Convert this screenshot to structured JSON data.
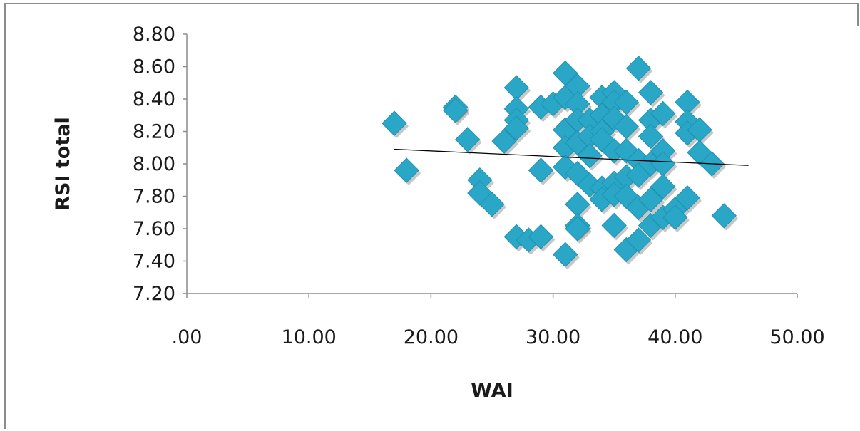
{
  "chart_data": {
    "type": "scatter",
    "xlabel": "WAI",
    "ylabel": "RSI total",
    "xlim": [
      0,
      50
    ],
    "ylim": [
      7.2,
      8.8
    ],
    "x_ticks": [
      ".00",
      "10.00",
      "20.00",
      "30.00",
      "40.00",
      "50.00"
    ],
    "y_ticks": [
      "7.20",
      "7.40",
      "7.60",
      "7.80",
      "8.00",
      "8.20",
      "8.40",
      "8.60",
      "8.80"
    ],
    "marker_color": "#2aa7c7",
    "trendline": {
      "x": [
        17,
        46
      ],
      "y": [
        8.09,
        7.99
      ]
    },
    "points": [
      {
        "x": 17,
        "y": 8.25
      },
      {
        "x": 18,
        "y": 7.96
      },
      {
        "x": 22,
        "y": 8.35
      },
      {
        "x": 22,
        "y": 8.33
      },
      {
        "x": 23,
        "y": 8.15
      },
      {
        "x": 24,
        "y": 7.9
      },
      {
        "x": 24,
        "y": 7.82
      },
      {
        "x": 25,
        "y": 7.75
      },
      {
        "x": 26,
        "y": 8.14
      },
      {
        "x": 27,
        "y": 8.47
      },
      {
        "x": 27,
        "y": 8.34
      },
      {
        "x": 27,
        "y": 8.27
      },
      {
        "x": 27,
        "y": 8.22
      },
      {
        "x": 27,
        "y": 7.55
      },
      {
        "x": 28,
        "y": 7.53
      },
      {
        "x": 29,
        "y": 8.35
      },
      {
        "x": 29,
        "y": 7.96
      },
      {
        "x": 29,
        "y": 7.55
      },
      {
        "x": 30,
        "y": 8.37
      },
      {
        "x": 31,
        "y": 8.56
      },
      {
        "x": 31,
        "y": 8.41
      },
      {
        "x": 31,
        "y": 8.21
      },
      {
        "x": 31,
        "y": 8.1
      },
      {
        "x": 31,
        "y": 7.98
      },
      {
        "x": 31,
        "y": 7.44
      },
      {
        "x": 32,
        "y": 8.48
      },
      {
        "x": 32,
        "y": 8.37
      },
      {
        "x": 32,
        "y": 8.27
      },
      {
        "x": 32,
        "y": 8.13
      },
      {
        "x": 32,
        "y": 7.94
      },
      {
        "x": 32,
        "y": 7.75
      },
      {
        "x": 32,
        "y": 7.62
      },
      {
        "x": 32,
        "y": 7.6
      },
      {
        "x": 33,
        "y": 8.27
      },
      {
        "x": 33,
        "y": 8.17
      },
      {
        "x": 33,
        "y": 8.05
      },
      {
        "x": 33,
        "y": 7.87
      },
      {
        "x": 34,
        "y": 8.41
      },
      {
        "x": 34,
        "y": 8.3
      },
      {
        "x": 34,
        "y": 8.2
      },
      {
        "x": 34,
        "y": 8.15
      },
      {
        "x": 34,
        "y": 7.85
      },
      {
        "x": 34,
        "y": 7.78
      },
      {
        "x": 35,
        "y": 8.44
      },
      {
        "x": 35,
        "y": 8.38
      },
      {
        "x": 35,
        "y": 8.28
      },
      {
        "x": 35,
        "y": 8.08
      },
      {
        "x": 35,
        "y": 7.88
      },
      {
        "x": 35,
        "y": 7.81
      },
      {
        "x": 35,
        "y": 7.62
      },
      {
        "x": 36,
        "y": 8.38
      },
      {
        "x": 36,
        "y": 8.23
      },
      {
        "x": 36,
        "y": 8.08
      },
      {
        "x": 36,
        "y": 7.92
      },
      {
        "x": 36,
        "y": 7.8
      },
      {
        "x": 36,
        "y": 7.47
      },
      {
        "x": 37,
        "y": 8.59
      },
      {
        "x": 37,
        "y": 8.02
      },
      {
        "x": 37,
        "y": 7.93
      },
      {
        "x": 37,
        "y": 7.73
      },
      {
        "x": 37,
        "y": 7.53
      },
      {
        "x": 38,
        "y": 8.44
      },
      {
        "x": 38,
        "y": 8.27
      },
      {
        "x": 38,
        "y": 8.17
      },
      {
        "x": 38,
        "y": 8.0
      },
      {
        "x": 38,
        "y": 7.78
      },
      {
        "x": 38,
        "y": 7.62
      },
      {
        "x": 39,
        "y": 8.31
      },
      {
        "x": 39,
        "y": 8.08
      },
      {
        "x": 39,
        "y": 8.0
      },
      {
        "x": 39,
        "y": 7.86
      },
      {
        "x": 39,
        "y": 7.67
      },
      {
        "x": 40,
        "y": 7.72
      },
      {
        "x": 40,
        "y": 7.67
      },
      {
        "x": 41,
        "y": 8.38
      },
      {
        "x": 41,
        "y": 8.26
      },
      {
        "x": 41,
        "y": 8.19
      },
      {
        "x": 41,
        "y": 7.79
      },
      {
        "x": 42,
        "y": 8.21
      },
      {
        "x": 42,
        "y": 8.07
      },
      {
        "x": 43,
        "y": 8.0
      },
      {
        "x": 44,
        "y": 7.68
      }
    ]
  }
}
